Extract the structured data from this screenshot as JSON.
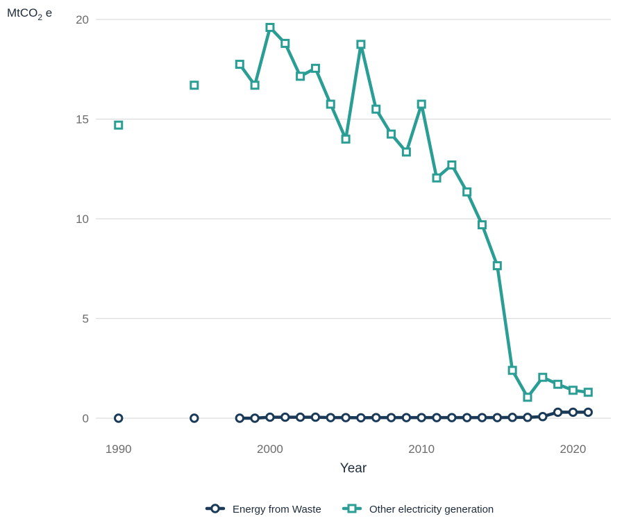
{
  "chart_data": {
    "type": "line",
    "title": "",
    "xlabel": "Year",
    "ylabel_main": "MtCO",
    "ylabel_sub": "2",
    "ylabel_tail": " e",
    "xlim": [
      1988.5,
      2022.5
    ],
    "ylim": [
      0,
      20
    ],
    "x_ticks": [
      1990,
      2000,
      2010,
      2020
    ],
    "y_ticks": [
      0,
      5,
      10,
      15,
      20
    ],
    "grid": true,
    "legend_position": "bottom",
    "x": [
      1990,
      1995,
      1998,
      1999,
      2000,
      2001,
      2002,
      2003,
      2004,
      2005,
      2006,
      2007,
      2008,
      2009,
      2010,
      2011,
      2012,
      2013,
      2014,
      2015,
      2016,
      2017,
      2018,
      2019,
      2020,
      2021
    ],
    "series": [
      {
        "name": "Energy from Waste",
        "color": "#1b3a57",
        "marker": "circle",
        "values": [
          0,
          0,
          0,
          0,
          0.05,
          0.05,
          0.05,
          0.05,
          0.03,
          0.03,
          0.02,
          0.03,
          0.03,
          0.03,
          0.03,
          0.03,
          0.03,
          0.03,
          0.03,
          0.03,
          0.04,
          0.04,
          0.08,
          0.3,
          0.3,
          0.3
        ]
      },
      {
        "name": "Other electricity generation",
        "color": "#2a9d94",
        "marker": "square",
        "values": [
          14.7,
          16.7,
          17.75,
          16.7,
          19.6,
          18.8,
          17.15,
          17.55,
          15.75,
          14.0,
          18.75,
          15.5,
          14.25,
          13.35,
          15.75,
          12.05,
          12.7,
          11.35,
          9.7,
          7.65,
          2.4,
          1.05,
          2.05,
          1.7,
          1.4,
          1.3
        ]
      }
    ]
  }
}
